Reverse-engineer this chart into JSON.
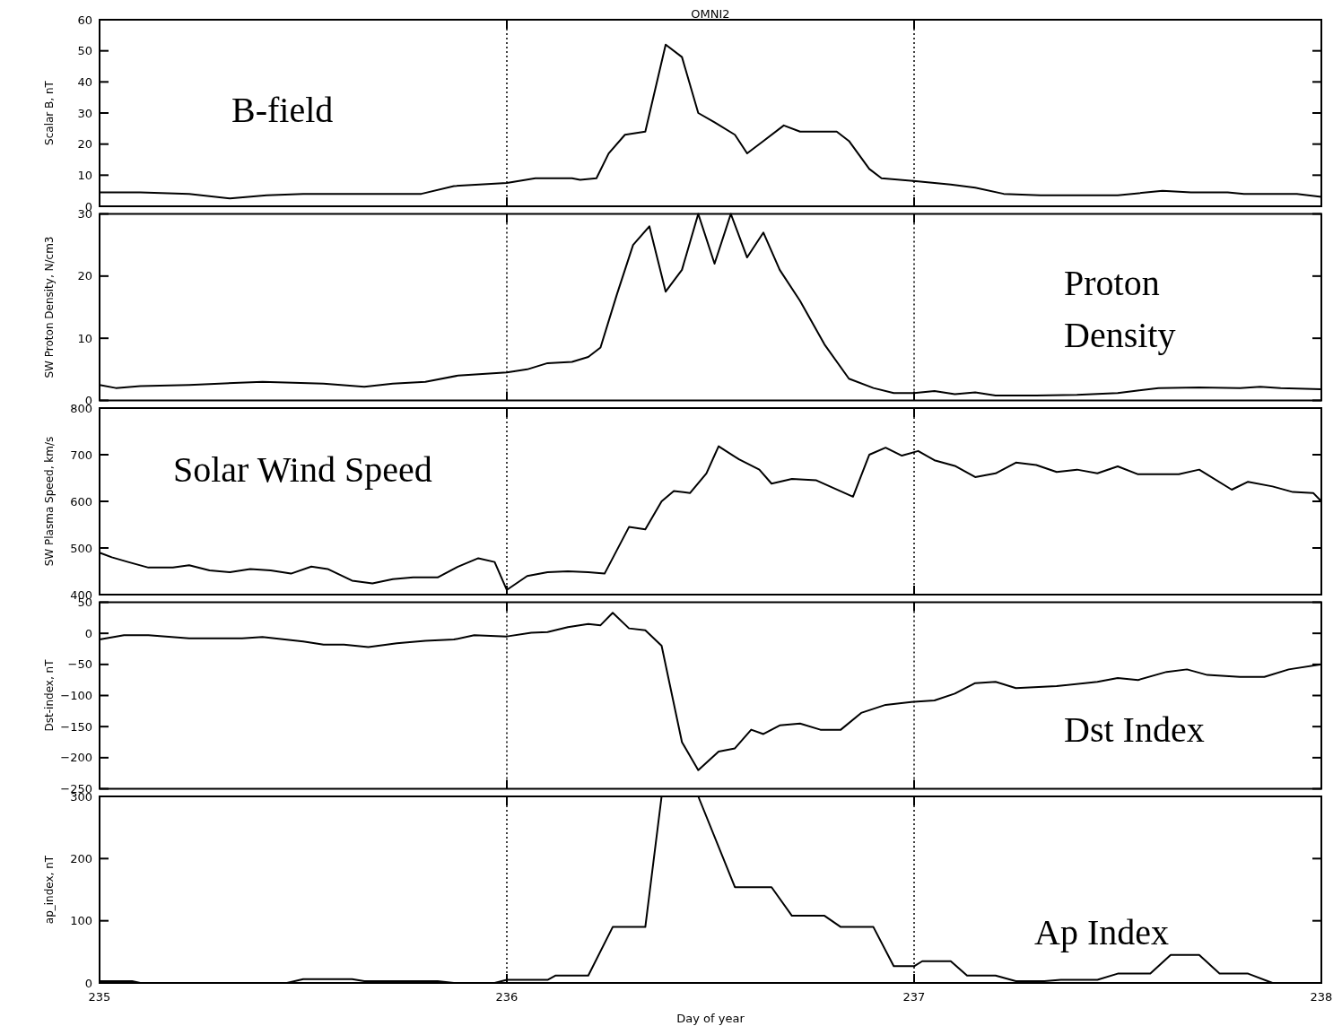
{
  "chart_data": [
    {
      "type": "line",
      "title": "OMNI2",
      "ylabel": "Scalar B, nT",
      "annotations": [
        "B-field"
      ],
      "xlim": [
        235,
        238
      ],
      "xticks": [
        235,
        236,
        237,
        238
      ],
      "ylim": [
        0,
        60
      ],
      "yticks": [
        0,
        10,
        20,
        30,
        40,
        50,
        60
      ],
      "tick_labels": "y",
      "grid": false,
      "marker": "none",
      "line_style": "solid",
      "ref_lines": [
        {
          "axis": "x",
          "value": 236,
          "line_style": "dotted"
        },
        {
          "axis": "x",
          "value": 237,
          "line_style": "dotted"
        }
      ],
      "series": [
        {
          "color": "#000000",
          "x": [
            235.0,
            235.1,
            235.22,
            235.32,
            235.41,
            235.5,
            235.79,
            235.87,
            236.0,
            236.07,
            236.16,
            236.18,
            236.22,
            236.25,
            236.29,
            236.34,
            236.39,
            236.43,
            236.47,
            236.51,
            236.56,
            236.59,
            236.63,
            236.68,
            236.72,
            236.81,
            236.84,
            236.89,
            236.92,
            237.01,
            237.09,
            237.15,
            237.22,
            237.31,
            237.5,
            237.61,
            237.68,
            237.77,
            237.81,
            237.94,
            238.0
          ],
          "values": [
            4.5,
            4.5,
            4,
            2.5,
            3.5,
            4,
            4,
            6.5,
            7.5,
            9,
            9,
            8.5,
            9,
            17,
            23,
            24,
            52,
            48,
            30,
            27,
            23,
            17,
            21,
            26,
            24,
            24,
            21,
            12,
            9,
            8,
            7,
            6,
            4,
            3.5,
            3.5,
            5,
            4.5,
            4.5,
            4,
            4,
            3
          ]
        }
      ]
    },
    {
      "type": "line",
      "ylabel": "SW Proton Density, N/cm3",
      "annotations": [
        "Proton Density"
      ],
      "xlim": [
        235,
        238
      ],
      "xticks": [
        235,
        236,
        237,
        238
      ],
      "ylim": [
        0,
        30
      ],
      "yticks": [
        0,
        10,
        20,
        30
      ],
      "tick_labels": "y",
      "grid": false,
      "marker": "none",
      "line_style": "solid",
      "ref_lines": [
        {
          "axis": "x",
          "value": 236,
          "line_style": "dotted"
        },
        {
          "axis": "x",
          "value": 237,
          "line_style": "dotted"
        }
      ],
      "series": [
        {
          "color": "#000000",
          "x": [
            235.0,
            235.04,
            235.1,
            235.22,
            235.4,
            235.55,
            235.65,
            235.72,
            235.8,
            235.88,
            236.0,
            236.05,
            236.1,
            236.16,
            236.2,
            236.23,
            236.27,
            236.31,
            236.35,
            236.39,
            236.43,
            236.47,
            236.51,
            236.55,
            236.59,
            236.63,
            236.67,
            236.72,
            236.78,
            236.84,
            236.9,
            236.95,
            237.0,
            237.05,
            237.1,
            237.15,
            237.2,
            237.3,
            237.4,
            237.5,
            237.6,
            237.7,
            237.8,
            237.85,
            237.9,
            238.0
          ],
          "values": [
            2.5,
            2,
            2.3,
            2.5,
            3,
            2.7,
            2.2,
            2.7,
            3,
            4,
            4.5,
            5,
            6,
            6.2,
            7,
            8.5,
            17,
            25,
            28,
            17.5,
            21,
            30,
            22,
            30,
            23,
            27,
            21,
            16,
            9,
            3.5,
            2,
            1.2,
            1.2,
            1.5,
            1,
            1.3,
            0.8,
            0.8,
            0.9,
            1.2,
            2,
            2.1,
            2,
            2.2,
            2,
            1.8
          ]
        }
      ]
    },
    {
      "type": "line",
      "ylabel": "SW Plasma Speed, km/s",
      "annotations": [
        "Solar Wind Speed"
      ],
      "xlim": [
        235,
        238
      ],
      "xticks": [
        235,
        236,
        237,
        238
      ],
      "ylim": [
        400,
        800
      ],
      "yticks": [
        400,
        500,
        600,
        700,
        800
      ],
      "tick_labels": "y",
      "grid": false,
      "marker": "none",
      "line_style": "solid",
      "ref_lines": [
        {
          "axis": "x",
          "value": 236,
          "line_style": "dotted"
        },
        {
          "axis": "x",
          "value": 237,
          "line_style": "dotted"
        }
      ],
      "series": [
        {
          "color": "#000000",
          "x": [
            235.0,
            235.03,
            235.07,
            235.12,
            235.18,
            235.22,
            235.27,
            235.32,
            235.37,
            235.42,
            235.47,
            235.52,
            235.56,
            235.62,
            235.67,
            235.72,
            235.77,
            235.83,
            235.88,
            235.93,
            235.97,
            236.0,
            236.05,
            236.1,
            236.15,
            236.2,
            236.24,
            236.3,
            236.34,
            236.38,
            236.41,
            236.45,
            236.49,
            236.52,
            236.57,
            236.62,
            236.65,
            236.7,
            236.76,
            236.85,
            236.89,
            236.93,
            236.97,
            237.01,
            237.05,
            237.1,
            237.15,
            237.2,
            237.25,
            237.3,
            237.35,
            237.4,
            237.45,
            237.5,
            237.55,
            237.65,
            237.7,
            237.78,
            237.82,
            237.88,
            237.93,
            237.98,
            238.0
          ],
          "values": [
            490,
            480,
            470,
            458,
            458,
            463,
            452,
            448,
            455,
            452,
            445,
            460,
            455,
            430,
            424,
            433,
            437,
            437,
            460,
            478,
            470,
            410,
            440,
            448,
            450,
            448,
            445,
            545,
            540,
            600,
            622,
            618,
            660,
            718,
            690,
            668,
            638,
            648,
            645,
            610,
            700,
            715,
            698,
            708,
            688,
            676,
            652,
            660,
            683,
            678,
            663,
            668,
            660,
            675,
            658,
            658,
            668,
            625,
            642,
            632,
            620,
            618,
            600
          ]
        }
      ]
    },
    {
      "type": "line",
      "ylabel": "Dst-index, nT",
      "annotations": [
        "Dst Index"
      ],
      "xlim": [
        235,
        238
      ],
      "xticks": [
        235,
        236,
        237,
        238
      ],
      "ylim": [
        -250,
        50
      ],
      "yticks": [
        -250,
        -200,
        -150,
        -100,
        -50,
        0,
        50
      ],
      "tick_labels": "y",
      "grid": false,
      "marker": "none",
      "line_style": "solid",
      "ref_lines": [
        {
          "axis": "x",
          "value": 236,
          "line_style": "dotted"
        },
        {
          "axis": "x",
          "value": 237,
          "line_style": "dotted"
        }
      ],
      "series": [
        {
          "color": "#000000",
          "x": [
            235.0,
            235.06,
            235.12,
            235.22,
            235.35,
            235.4,
            235.5,
            235.55,
            235.6,
            235.66,
            235.73,
            235.8,
            235.87,
            235.92,
            236.0,
            236.06,
            236.1,
            236.15,
            236.2,
            236.23,
            236.26,
            236.3,
            236.34,
            236.38,
            236.43,
            236.47,
            236.52,
            236.56,
            236.6,
            236.63,
            236.67,
            236.72,
            236.77,
            236.82,
            236.87,
            236.93,
            237.0,
            237.05,
            237.1,
            237.15,
            237.2,
            237.25,
            237.35,
            237.45,
            237.5,
            237.55,
            237.62,
            237.67,
            237.72,
            237.8,
            237.86,
            237.92,
            238.0
          ],
          "values": [
            -10,
            -3,
            -3,
            -8,
            -8,
            -6,
            -13,
            -18,
            -18,
            -22,
            -16,
            -12,
            -10,
            -3,
            -5,
            1,
            2,
            10,
            15,
            13,
            33,
            8,
            5,
            -20,
            -175,
            -220,
            -190,
            -185,
            -155,
            -162,
            -148,
            -145,
            -155,
            -155,
            -128,
            -115,
            -110,
            -108,
            -97,
            -80,
            -78,
            -88,
            -85,
            -78,
            -72,
            -75,
            -62,
            -58,
            -67,
            -70,
            -70,
            -58,
            -50
          ]
        }
      ]
    },
    {
      "type": "line",
      "xlabel": "Day of year",
      "ylabel": "ap_index, nT",
      "annotations": [
        "Ap Index"
      ],
      "xlim": [
        235,
        238
      ],
      "xticks": [
        235,
        236,
        237,
        238
      ],
      "ylim": [
        0,
        300
      ],
      "yticks": [
        0,
        100,
        200,
        300
      ],
      "grid": false,
      "marker": "none",
      "line_style": "solid",
      "ref_lines": [
        {
          "axis": "x",
          "value": 236,
          "line_style": "dotted"
        },
        {
          "axis": "x",
          "value": 237,
          "line_style": "dotted"
        }
      ],
      "series": [
        {
          "color": "#000000",
          "x": [
            235.0,
            235.08,
            235.1,
            235.46,
            235.5,
            235.62,
            235.65,
            235.83,
            235.87,
            235.97,
            236.0,
            236.1,
            236.12,
            236.2,
            236.26,
            236.34,
            236.38,
            236.47,
            236.56,
            236.65,
            236.7,
            236.78,
            236.82,
            236.9,
            236.95,
            237.0,
            237.02,
            237.09,
            237.13,
            237.2,
            237.25,
            237.32,
            237.36,
            237.45,
            237.5,
            237.58,
            237.63,
            237.7,
            237.75,
            237.82,
            237.88,
            238.0
          ],
          "values": [
            3,
            3,
            0,
            0,
            6,
            6,
            3,
            3,
            0,
            0,
            5,
            5,
            12,
            12,
            90,
            90,
            300,
            300,
            154,
            154,
            108,
            108,
            90,
            90,
            27,
            27,
            35,
            35,
            12,
            12,
            3,
            3,
            5,
            5,
            15,
            15,
            45,
            45,
            15,
            15,
            0,
            0
          ]
        }
      ]
    }
  ]
}
